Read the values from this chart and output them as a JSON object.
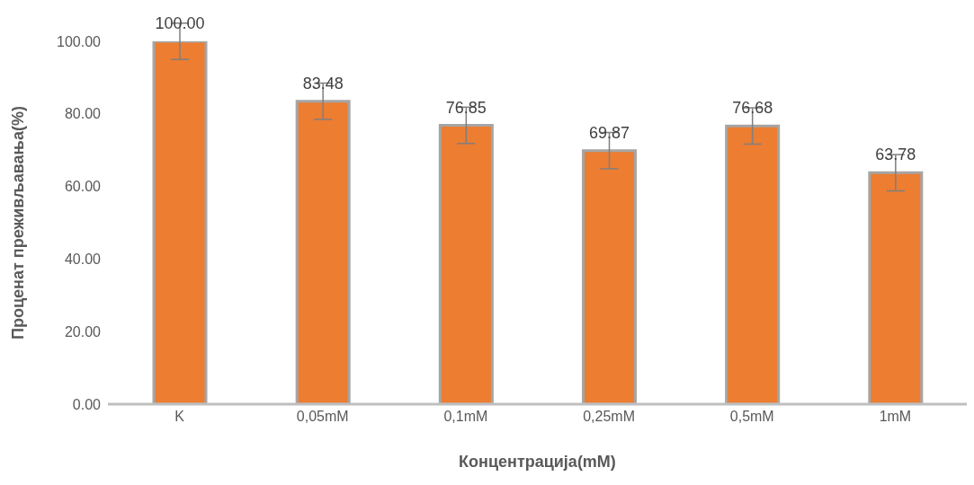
{
  "chart_data": {
    "type": "bar",
    "xlabel": "Концентрација(mM)",
    "ylabel": "Проценат преживљавања(%)",
    "categories": [
      "K",
      "0,05mM",
      "0,1mM",
      "0,25mM",
      "0,5mM",
      "1mM"
    ],
    "values": [
      100.0,
      83.48,
      76.85,
      69.87,
      76.68,
      63.78
    ],
    "value_labels": [
      "100.00",
      "83.48",
      "76.85",
      "69.87",
      "76.68",
      "63.78"
    ],
    "errors": [
      5,
      5,
      5,
      5,
      5,
      5
    ],
    "color": "#ed7d31",
    "ylim": [
      0,
      100
    ],
    "yticks": [
      {
        "value": 0,
        "label": "0.00"
      },
      {
        "value": 20,
        "label": "20.00"
      },
      {
        "value": 40,
        "label": "40.00"
      },
      {
        "value": 60,
        "label": "60.00"
      },
      {
        "value": 80,
        "label": "80.00"
      },
      {
        "value": 100,
        "label": "100.00"
      }
    ],
    "grid": false,
    "legend": false
  }
}
